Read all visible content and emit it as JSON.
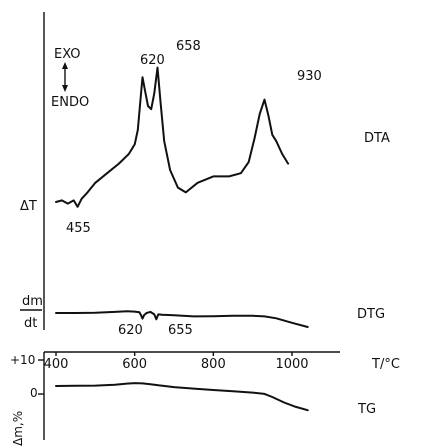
{
  "chart_data": {
    "type": "line",
    "xlabel": "T/°C",
    "x_ticks": [
      "400",
      "600",
      "800",
      "1000"
    ],
    "xlim": [
      400,
      1050
    ],
    "annotations": {
      "exo": "EXO",
      "endo": "ENDO",
      "dta_ylabel": "ΔT",
      "dtg_ylabel_num": "dm",
      "dtg_ylabel_den": "dt",
      "tg_ylabel": "Δm,%",
      "tg_tick_plus10": "+10",
      "tg_tick_zero": "0"
    },
    "series": [
      {
        "name": "DTA",
        "peaks": [
          {
            "label": "620",
            "x": 620
          },
          {
            "label": "658",
            "x": 658
          },
          {
            "label": "930",
            "x": 930
          }
        ],
        "troughs": [
          {
            "label": "455",
            "x": 455
          }
        ],
        "x": [
          400,
          415,
          430,
          445,
          455,
          465,
          480,
          500,
          530,
          560,
          585,
          600,
          608,
          614,
          620,
          626,
          634,
          642,
          650,
          658,
          666,
          675,
          690,
          710,
          730,
          760,
          800,
          840,
          870,
          890,
          905,
          918,
          930,
          940,
          950,
          960,
          975,
          990
        ],
        "y": [
          0,
          1,
          -1,
          1,
          -3,
          2,
          6,
          12,
          18,
          24,
          30,
          36,
          45,
          62,
          78,
          70,
          60,
          58,
          68,
          84,
          62,
          38,
          20,
          9,
          6,
          12,
          16,
          16,
          18,
          25,
          40,
          55,
          64,
          54,
          42,
          38,
          30,
          24
        ]
      },
      {
        "name": "DTG",
        "minima": [
          {
            "label": "620",
            "x": 620
          },
          {
            "label": "655",
            "x": 655
          }
        ],
        "x": [
          400,
          450,
          500,
          550,
          580,
          600,
          612,
          616,
          620,
          624,
          630,
          640,
          650,
          655,
          660,
          670,
          700,
          750,
          800,
          850,
          900,
          930,
          960,
          1000,
          1040
        ],
        "y": [
          0,
          0,
          0.2,
          0.8,
          1.2,
          1,
          0.5,
          -1.5,
          -4,
          -1.5,
          0,
          0.8,
          -1,
          -4.5,
          -1,
          -1.2,
          -1.6,
          -2.4,
          -2.3,
          -2,
          -2,
          -2.4,
          -3.8,
          -7,
          -10
        ]
      },
      {
        "name": "TG",
        "x": [
          400,
          450,
          500,
          550,
          580,
          600,
          620,
          640,
          660,
          700,
          750,
          800,
          850,
          900,
          930,
          950,
          980,
          1010,
          1040
        ],
        "y": [
          0,
          0.1,
          0.2,
          0.6,
          1.1,
          1.3,
          1.2,
          0.8,
          0.3,
          -0.5,
          -1.2,
          -1.8,
          -2.4,
          -3,
          -3.6,
          -5,
          -7.5,
          -9.5,
          -11
        ]
      }
    ]
  }
}
